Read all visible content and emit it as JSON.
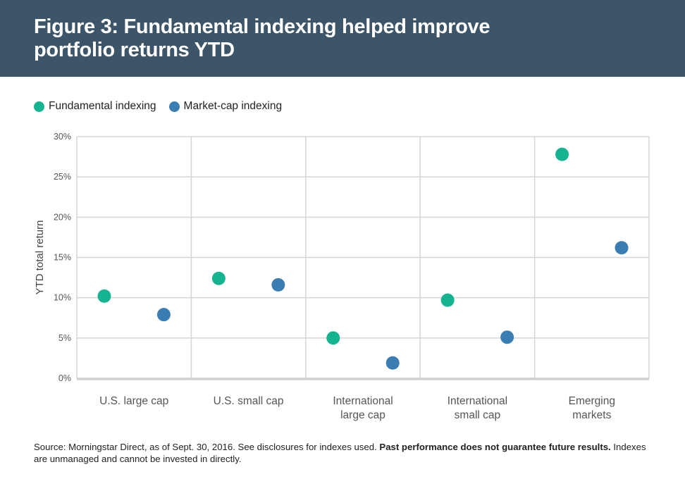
{
  "title_line1": "Figure 3: Fundamental indexing helped improve",
  "title_line2": "portfolio returns YTD",
  "colors": {
    "header_bg": "#3d5568",
    "fundamental": "#13b48f",
    "marketcap": "#3a7db3",
    "grid": "#d5d5d5"
  },
  "chart_data": {
    "type": "scatter",
    "title": "Figure 3: Fundamental indexing helped improve portfolio returns YTD",
    "ylabel": "YTD total return",
    "xlabel": "",
    "ylim": [
      0,
      30
    ],
    "yticks": [
      "0%",
      "5%",
      "10%",
      "15%",
      "20%",
      "25%",
      "30%"
    ],
    "grid": true,
    "legend_position": "top-left",
    "categories": [
      [
        "U.S. large cap"
      ],
      [
        "U.S. small cap"
      ],
      [
        "International",
        "large cap"
      ],
      [
        "International",
        "small cap"
      ],
      [
        "Emerging",
        "markets"
      ]
    ],
    "series": [
      {
        "name": "Fundamental indexing",
        "color": "#13b48f",
        "values": [
          10.2,
          12.4,
          5.0,
          9.7,
          27.8
        ]
      },
      {
        "name": "Market-cap indexing",
        "color": "#3a7db3",
        "values": [
          7.9,
          11.6,
          1.9,
          5.1,
          16.2
        ]
      }
    ]
  },
  "footnote": {
    "part1": "Source: Morningstar Direct, as of Sept. 30, 2016. See disclosures for indexes used. ",
    "bold": "Past performance does not guarantee future results.",
    "part2": " Indexes are unmanaged and cannot be invested in directly."
  }
}
